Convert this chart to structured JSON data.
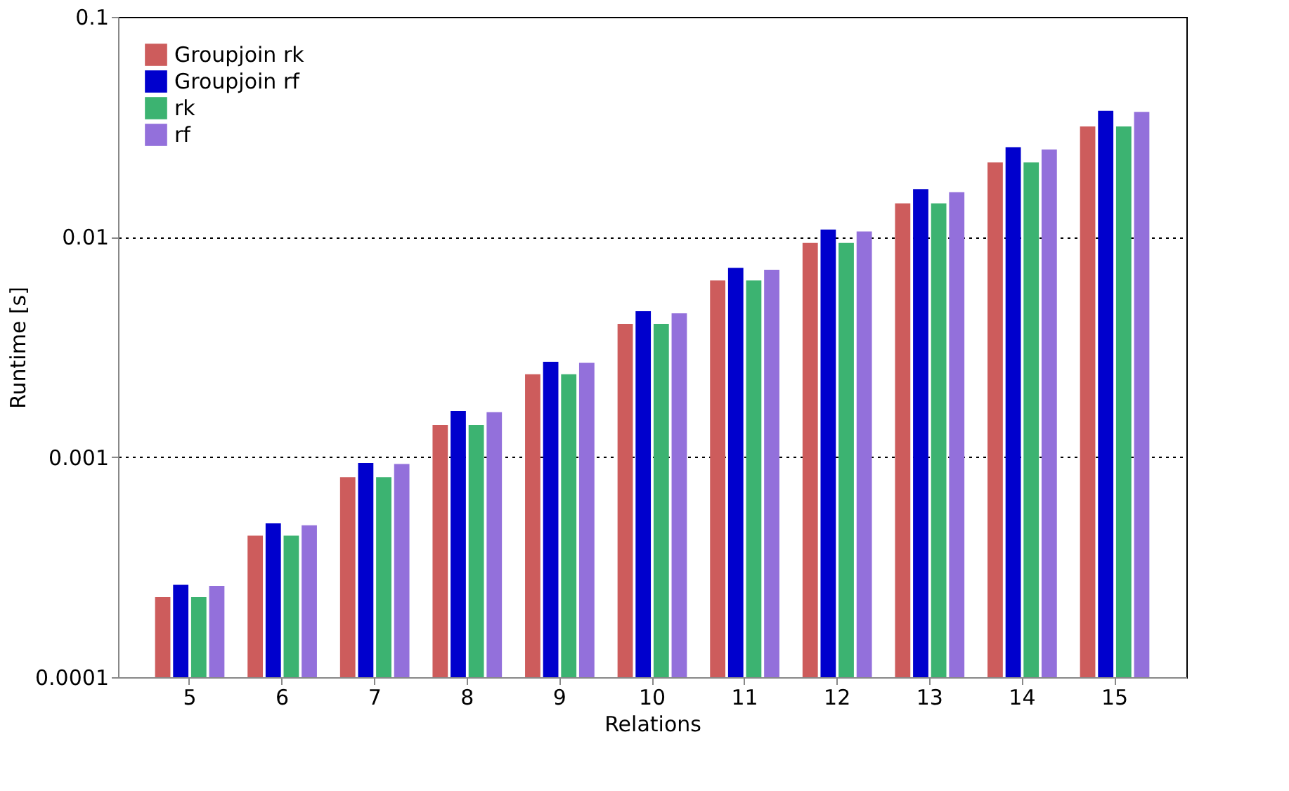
{
  "chart_data": {
    "type": "bar",
    "xlabel": "Relations",
    "ylabel": "Runtime [s]",
    "categories": [
      "5",
      "6",
      "7",
      "8",
      "9",
      "10",
      "11",
      "12",
      "13",
      "14",
      "15"
    ],
    "series": [
      {
        "name": "Groupjoin rk",
        "color": "#cd5c5c",
        "values": [
          0.000231,
          0.00044,
          0.00081,
          0.0014,
          0.00238,
          0.00403,
          0.00635,
          0.0094,
          0.0142,
          0.0218,
          0.0318
        ]
      },
      {
        "name": "Groupjoin rf",
        "color": "#0000cd",
        "values": [
          0.000263,
          0.0005,
          0.00094,
          0.00162,
          0.00271,
          0.0046,
          0.00724,
          0.0108,
          0.0165,
          0.0256,
          0.0374
        ]
      },
      {
        "name": "rk",
        "color": "#3cb371",
        "values": [
          0.000231,
          0.00044,
          0.00081,
          0.0014,
          0.00238,
          0.00403,
          0.00635,
          0.0094,
          0.0142,
          0.0218,
          0.0318
        ]
      },
      {
        "name": "rf",
        "color": "#9370db",
        "values": [
          0.00026,
          0.00049,
          0.00093,
          0.0016,
          0.00268,
          0.0045,
          0.0071,
          0.0106,
          0.016,
          0.025,
          0.037
        ]
      }
    ],
    "log": true,
    "ylim": [
      0.0001,
      0.1
    ],
    "yticks": [
      0.0001,
      0.001,
      0.01,
      0.1
    ],
    "grid": "y",
    "legend": "top left"
  }
}
